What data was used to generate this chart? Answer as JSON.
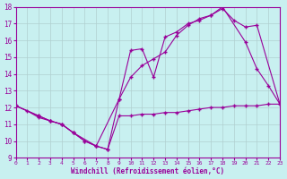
{
  "xlabel": "Windchill (Refroidissement éolien,°C)",
  "xlim": [
    0,
    23
  ],
  "ylim": [
    9,
    18
  ],
  "xticks": [
    0,
    1,
    2,
    3,
    4,
    5,
    6,
    7,
    8,
    9,
    10,
    11,
    12,
    13,
    14,
    15,
    16,
    17,
    18,
    19,
    20,
    21,
    22,
    23
  ],
  "yticks": [
    9,
    10,
    11,
    12,
    13,
    14,
    15,
    16,
    17,
    18
  ],
  "bg_color": "#c8f0f0",
  "line_color": "#990099",
  "grid_color": "#b0d0d0",
  "curve1_x": [
    0,
    1,
    2,
    3,
    4,
    5,
    6,
    7,
    8,
    9,
    10,
    11,
    12,
    13,
    14,
    15,
    16,
    17,
    18,
    19,
    20,
    21,
    22,
    23
  ],
  "curve1_y": [
    12.1,
    11.8,
    11.4,
    11.2,
    11.0,
    10.5,
    10.0,
    9.7,
    9.5,
    11.5,
    11.5,
    11.6,
    11.6,
    11.7,
    11.7,
    11.8,
    11.9,
    12.0,
    12.0,
    12.1,
    12.1,
    12.1,
    12.2,
    12.2
  ],
  "curve2_x": [
    0,
    2,
    3,
    4,
    5,
    6,
    7,
    8,
    9,
    10,
    11,
    12,
    13,
    14,
    15,
    16,
    17,
    18,
    20,
    21,
    22,
    23
  ],
  "curve2_y": [
    12.1,
    11.5,
    11.2,
    11.0,
    10.5,
    10.0,
    9.7,
    9.5,
    12.5,
    15.4,
    15.5,
    13.8,
    16.2,
    16.5,
    17.0,
    17.2,
    17.5,
    18.0,
    15.9,
    14.3,
    13.3,
    12.2
  ],
  "curve3_x": [
    0,
    2,
    3,
    4,
    5,
    7,
    9,
    10,
    11,
    12,
    13,
    14,
    15,
    16,
    17,
    18,
    19,
    20,
    21,
    23
  ],
  "curve3_y": [
    12.1,
    11.5,
    11.2,
    11.0,
    10.5,
    9.7,
    12.5,
    13.8,
    14.5,
    14.9,
    15.3,
    16.3,
    16.9,
    17.3,
    17.5,
    17.9,
    17.2,
    16.8,
    16.9,
    12.2
  ]
}
